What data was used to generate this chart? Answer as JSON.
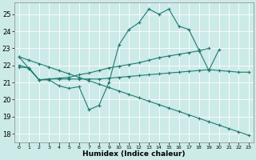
{
  "xlabel": "Humidex (Indice chaleur)",
  "bg_color": "#cceae8",
  "grid_color": "#b8dbd9",
  "line_color": "#1f7a70",
  "xlim": [
    -0.5,
    23.5
  ],
  "ylim": [
    17.5,
    25.7
  ],
  "yticks": [
    18,
    19,
    20,
    21,
    22,
    23,
    24,
    25
  ],
  "xticks": [
    0,
    1,
    2,
    3,
    4,
    5,
    6,
    7,
    8,
    9,
    10,
    11,
    12,
    13,
    14,
    15,
    16,
    17,
    18,
    19,
    20,
    21,
    22,
    23
  ],
  "line1_x": [
    0,
    1,
    2,
    3,
    4,
    5,
    6,
    7,
    8,
    9,
    10,
    11,
    12,
    13,
    14,
    15,
    16,
    17,
    18,
    19,
    20
  ],
  "line1_y": [
    22.5,
    21.8,
    21.15,
    21.15,
    20.8,
    20.65,
    20.75,
    19.4,
    19.65,
    21.0,
    23.2,
    24.1,
    24.5,
    25.3,
    25.0,
    25.3,
    24.3,
    24.1,
    22.9,
    21.7,
    22.9
  ],
  "line2_x": [
    0,
    1,
    2,
    3,
    4,
    5,
    6,
    7,
    8,
    9,
    10,
    11,
    12,
    13,
    14,
    15,
    16,
    17,
    18,
    19
  ],
  "line2_y": [
    22.0,
    21.85,
    21.15,
    21.2,
    21.25,
    21.3,
    21.45,
    21.55,
    21.7,
    21.85,
    21.95,
    22.05,
    22.15,
    22.3,
    22.45,
    22.55,
    22.65,
    22.75,
    22.85,
    23.0
  ],
  "line3_x": [
    0,
    1,
    2,
    3,
    4,
    5,
    6,
    7,
    8,
    9,
    10,
    11,
    12,
    13,
    14,
    15,
    16,
    17,
    18,
    19,
    20,
    21,
    22,
    23
  ],
  "line3_y": [
    21.9,
    21.85,
    21.15,
    21.2,
    21.2,
    21.2,
    21.2,
    21.2,
    21.2,
    21.25,
    21.3,
    21.35,
    21.4,
    21.45,
    21.5,
    21.55,
    21.6,
    21.65,
    21.7,
    21.75,
    21.7,
    21.65,
    21.6,
    21.6
  ],
  "line4_x": [
    0,
    1,
    2,
    3,
    4,
    5,
    6,
    7,
    8,
    9,
    10,
    11,
    12,
    13,
    14,
    15,
    16,
    17,
    18,
    19,
    20,
    21,
    22,
    23
  ],
  "line4_y": [
    22.5,
    22.3,
    22.1,
    21.9,
    21.7,
    21.5,
    21.3,
    21.1,
    20.9,
    20.7,
    20.5,
    20.3,
    20.1,
    19.9,
    19.7,
    19.5,
    19.3,
    19.1,
    18.9,
    18.7,
    18.5,
    18.3,
    18.1,
    17.9
  ]
}
